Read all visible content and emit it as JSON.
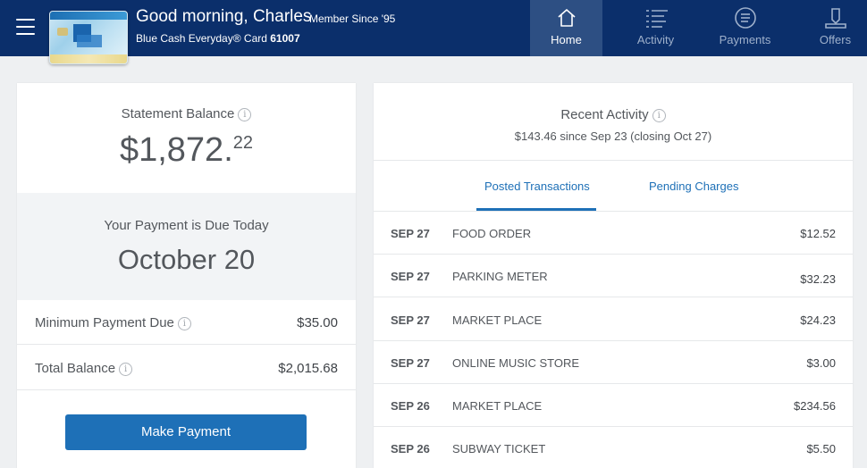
{
  "header": {
    "greeting": "Good morning, Charles",
    "member_since": "Member Since '95",
    "card_name": "Blue Cash Everyday® Card",
    "card_number": "61007",
    "nav": [
      {
        "label": "Home",
        "icon": "home-icon",
        "active": true
      },
      {
        "label": "Activity",
        "icon": "activity-list-icon",
        "active": false
      },
      {
        "label": "Payments",
        "icon": "payments-icon",
        "active": false
      },
      {
        "label": "Offers",
        "icon": "offers-icon",
        "active": false
      }
    ]
  },
  "statement": {
    "label": "Statement Balance",
    "amount_main": "$1,872.",
    "amount_cents": "22",
    "due_label": "Your Payment is Due Today",
    "due_date": "October 20",
    "min_label": "Minimum Payment Due",
    "min_value": "$35.00",
    "total_label": "Total Balance",
    "total_value": "$2,015.68",
    "pay_button": "Make Payment"
  },
  "activity": {
    "title": "Recent Activity",
    "subtitle": "$143.46 since Sep 23 (closing Oct 27)",
    "tabs": [
      "Posted Transactions",
      "Pending Charges"
    ],
    "transactions": [
      {
        "date": "SEP 27",
        "merchant": "FOOD ORDER",
        "amount": "$12.52"
      },
      {
        "date": "SEP 27",
        "merchant": "PARKING METER",
        "amount": "$32.23"
      },
      {
        "date": "SEP 27",
        "merchant": "MARKET PLACE",
        "amount": "$24.23"
      },
      {
        "date": "SEP 27",
        "merchant": "ONLINE MUSIC STORE",
        "amount": "$3.00"
      },
      {
        "date": "SEP 26",
        "merchant": "MARKET PLACE",
        "amount": "$234.56"
      },
      {
        "date": "SEP 26",
        "merchant": "SUBWAY TICKET",
        "amount": "$5.50"
      }
    ]
  },
  "colors": {
    "header_bg": "#0b2f6b",
    "active_nav_bg": "#2d4f83",
    "accent": "#1e70b7"
  }
}
